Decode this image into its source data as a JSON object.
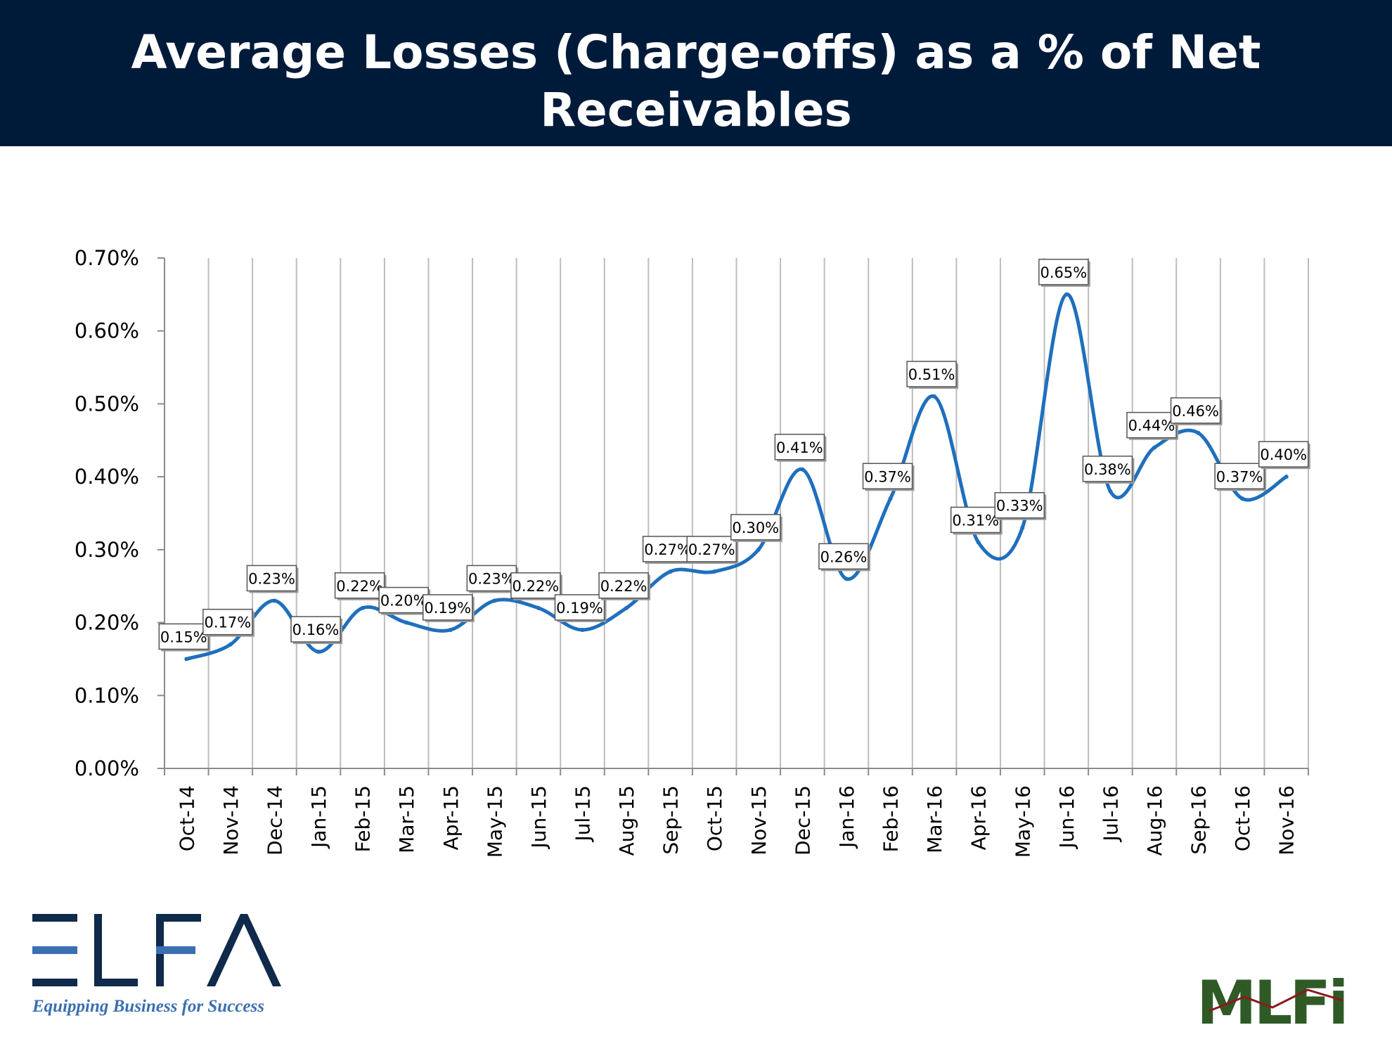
{
  "title": "Average Losses (Charge-offs) as a % of Net Receivables",
  "chart_data": {
    "type": "line",
    "title": "",
    "xlabel": "",
    "ylabel": "",
    "categories": [
      "Oct-14",
      "Nov-14",
      "Dec-14",
      "Jan-15",
      "Feb-15",
      "Mar-15",
      "Apr-15",
      "May-15",
      "Jun-15",
      "Jul-15",
      "Aug-15",
      "Sep-15",
      "Oct-15",
      "Nov-15",
      "Dec-15",
      "Jan-16",
      "Feb-16",
      "Mar-16",
      "Apr-16",
      "May-16",
      "Jun-16",
      "Jul-16",
      "Aug-16",
      "Sep-16",
      "Oct-16",
      "Nov-16"
    ],
    "series": [
      {
        "values": [
          0.15,
          0.17,
          0.23,
          0.16,
          0.22,
          0.2,
          0.19,
          0.23,
          0.22,
          0.19,
          0.22,
          0.27,
          0.27,
          0.3,
          0.41,
          0.26,
          0.37,
          0.51,
          0.31,
          0.33,
          0.65,
          0.38,
          0.44,
          0.46,
          0.37,
          0.4
        ],
        "data_labels": [
          "0.15%",
          "0.17%",
          "0.23%",
          "0.16%",
          "0.22%",
          "0.20%",
          "0.19%",
          "0.23%",
          "0.22%",
          "0.19%",
          "0.22%",
          "0.27%",
          "0.27%",
          "0.30%",
          "0.41%",
          "0.26%",
          "0.37%",
          "0.51%",
          "0.31%",
          "0.33%",
          "0.65%",
          "0.38%",
          "0.44%",
          "0.46%",
          "0.37%",
          "0.40%"
        ],
        "color": "#1f6fbd"
      }
    ],
    "yticks": [
      "0.00%",
      "0.10%",
      "0.20%",
      "0.30%",
      "0.40%",
      "0.50%",
      "0.60%",
      "0.70%"
    ],
    "ylim": [
      0,
      0.7
    ],
    "grid": "vertical",
    "legend": "none",
    "smooth": true
  },
  "logos": {
    "elfa": {
      "text": "ELFA",
      "tagline": "Equipping Business for Success",
      "color": "#0f2a4a",
      "accent": "#3a6fb0"
    },
    "mlfi": {
      "text": "MLFi"
    }
  }
}
